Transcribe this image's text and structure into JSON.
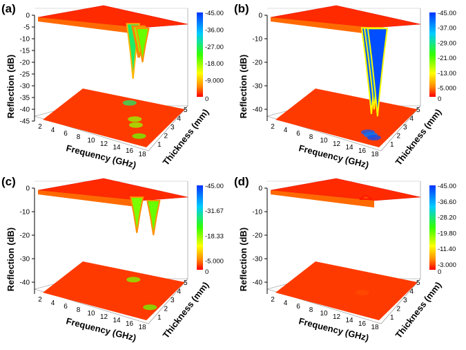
{
  "figure": {
    "shared_axes": {
      "xlabel": "Frequency (GHz)",
      "ylabel": "Thickness (mm)",
      "zlabel": "Reflection (dB)"
    }
  },
  "chart_data": [
    {
      "type": "surface3d",
      "panel_label": "(a)",
      "xlabel": "Frequency (GHz)",
      "ylabel": "Thickness (mm)",
      "zlabel": "Reflection (dB)",
      "x_ticks": [
        "2",
        "4",
        "6",
        "8",
        "10",
        "12",
        "14",
        "16",
        "18"
      ],
      "y_ticks": [
        "1",
        "2",
        "3",
        "4",
        "5"
      ],
      "z_ticks": [
        "0",
        "-5",
        "-10",
        "-15",
        "-20",
        "-25",
        "-30",
        "-35",
        "-40",
        "-45"
      ],
      "zlim": [
        -45,
        0
      ],
      "colorbar_ticks": [
        "-45.00",
        "-36.00",
        "-27.00",
        "-18.00",
        "-9.000",
        "0"
      ],
      "colorbar_range": [
        -45,
        0
      ],
      "dips": [
        {
          "freq": 9.5,
          "thickness": 4.8,
          "min_db": -27
        },
        {
          "freq": 12.5,
          "thickness": 3.2,
          "min_db": -18
        },
        {
          "freq": 13.5,
          "thickness": 2.6,
          "min_db": -18
        },
        {
          "freq": 15.5,
          "thickness": 1.5,
          "min_db": -20
        }
      ]
    },
    {
      "type": "surface3d",
      "panel_label": "(b)",
      "xlabel": "Frequency (GHz)",
      "ylabel": "Thickness (mm)",
      "zlabel": "Reflection (dB)",
      "x_ticks": [
        "2",
        "4",
        "6",
        "8",
        "10",
        "12",
        "14",
        "16",
        "18"
      ],
      "y_ticks": [
        "1",
        "2",
        "3",
        "4",
        "5"
      ],
      "z_ticks": [
        "0",
        "-10",
        "-20",
        "-30",
        "-40"
      ],
      "zlim": [
        -45,
        0
      ],
      "colorbar_ticks": [
        "-45.00",
        "-37.00",
        "-29.00",
        "-21.00",
        "-13.00",
        "-5.000",
        "0"
      ],
      "colorbar_range": [
        -45,
        0
      ],
      "dips": [
        {
          "freq": 14.5,
          "thickness": 1.8,
          "min_db": -42
        },
        {
          "freq": 15.2,
          "thickness": 1.6,
          "min_db": -40
        },
        {
          "freq": 16.0,
          "thickness": 1.4,
          "min_db": -43
        }
      ]
    },
    {
      "type": "surface3d",
      "panel_label": "(c)",
      "xlabel": "Frequency (GHz)",
      "ylabel": "Thickness (mm)",
      "zlabel": "Reflection (dB)",
      "x_ticks": [
        "2",
        "4",
        "6",
        "8",
        "10",
        "12",
        "14",
        "16",
        "18"
      ],
      "y_ticks": [
        "1",
        "2",
        "3",
        "4",
        "5"
      ],
      "z_ticks": [
        "0",
        "-10",
        "-20",
        "-30",
        "-40"
      ],
      "zlim": [
        -45,
        0
      ],
      "colorbar_ticks": [
        "-45.00",
        "-31.67",
        "-18.33",
        "-5.000",
        "0"
      ],
      "colorbar_range": [
        -45,
        0
      ],
      "dips": [
        {
          "freq": 10.5,
          "thickness": 4.5,
          "min_db": -19
        },
        {
          "freq": 16.5,
          "thickness": 2.0,
          "min_db": -20
        }
      ]
    },
    {
      "type": "surface3d",
      "panel_label": "(d)",
      "xlabel": "Frequency (GHz)",
      "ylabel": "Thickness (mm)",
      "zlabel": "Reflection (dB)",
      "x_ticks": [
        "2",
        "4",
        "6",
        "8",
        "10",
        "12",
        "14",
        "16",
        "18"
      ],
      "y_ticks": [
        "1",
        "2",
        "3",
        "4",
        "5"
      ],
      "z_ticks": [
        "0",
        "-10",
        "-20",
        "-30",
        "-40"
      ],
      "zlim": [
        -45,
        0
      ],
      "colorbar_ticks": [
        "-45.00",
        "-36.60",
        "-28.20",
        "-19.80",
        "-11.40",
        "-3.000",
        "0"
      ],
      "colorbar_range": [
        -45,
        0
      ],
      "dips": [
        {
          "freq": 12.0,
          "thickness": 3.0,
          "min_db": -3
        }
      ]
    }
  ]
}
